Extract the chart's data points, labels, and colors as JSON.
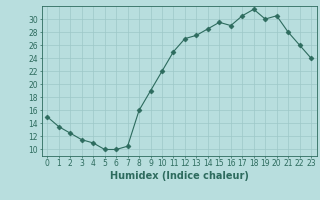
{
  "x": [
    0,
    1,
    2,
    3,
    4,
    5,
    6,
    7,
    8,
    9,
    10,
    11,
    12,
    13,
    14,
    15,
    16,
    17,
    18,
    19,
    20,
    21,
    22,
    23
  ],
  "y": [
    15,
    13.5,
    12.5,
    11.5,
    11,
    10,
    10,
    10.5,
    16,
    19,
    22,
    25,
    27,
    27.5,
    28.5,
    29.5,
    29,
    30.5,
    31.5,
    30,
    30.5,
    28,
    26,
    24
  ],
  "line_color": "#2d6b5e",
  "marker": "D",
  "marker_size": 2.5,
  "bg_color": "#b8dede",
  "grid_color": "#9dc8c8",
  "xlabel": "Humidex (Indice chaleur)",
  "ylim": [
    9,
    32
  ],
  "xlim": [
    -0.5,
    23.5
  ],
  "yticks": [
    10,
    12,
    14,
    16,
    18,
    20,
    22,
    24,
    26,
    28,
    30
  ],
  "xticks": [
    0,
    1,
    2,
    3,
    4,
    5,
    6,
    7,
    8,
    9,
    10,
    11,
    12,
    13,
    14,
    15,
    16,
    17,
    18,
    19,
    20,
    21,
    22,
    23
  ],
  "tick_color": "#2d6b5e",
  "label_fontsize": 7,
  "tick_fontsize": 5.5
}
